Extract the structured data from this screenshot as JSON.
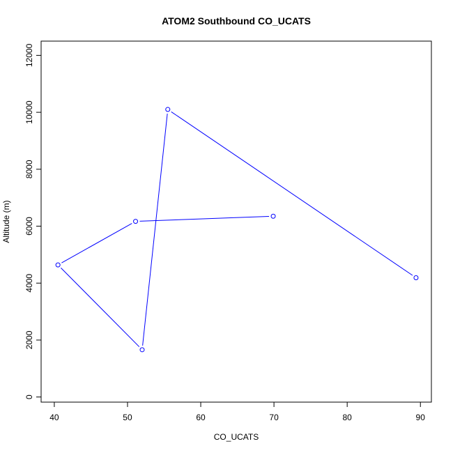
{
  "chart_data": {
    "type": "line",
    "title": "ATOM2 Southbound CO_UCATS",
    "xlabel": "CO_UCATS",
    "ylabel": "Altitude (m)",
    "xlim": [
      38.2,
      91.5
    ],
    "ylim": [
      -180,
      12500
    ],
    "xticks": [
      40,
      50,
      60,
      70,
      80,
      90
    ],
    "yticks": [
      0,
      2000,
      4000,
      6000,
      8000,
      10000,
      12000
    ],
    "grid": false,
    "colors": {
      "series": "#0000ff",
      "axes": "#000000"
    },
    "series": [
      {
        "marker": "open-circle",
        "points": [
          {
            "x": 69.9,
            "y": 6350
          },
          {
            "x": 51.1,
            "y": 6170
          },
          {
            "x": 40.5,
            "y": 4640
          },
          {
            "x": 52.0,
            "y": 1660
          },
          {
            "x": 55.5,
            "y": 10100
          },
          {
            "x": 89.4,
            "y": 4190
          }
        ]
      }
    ]
  }
}
